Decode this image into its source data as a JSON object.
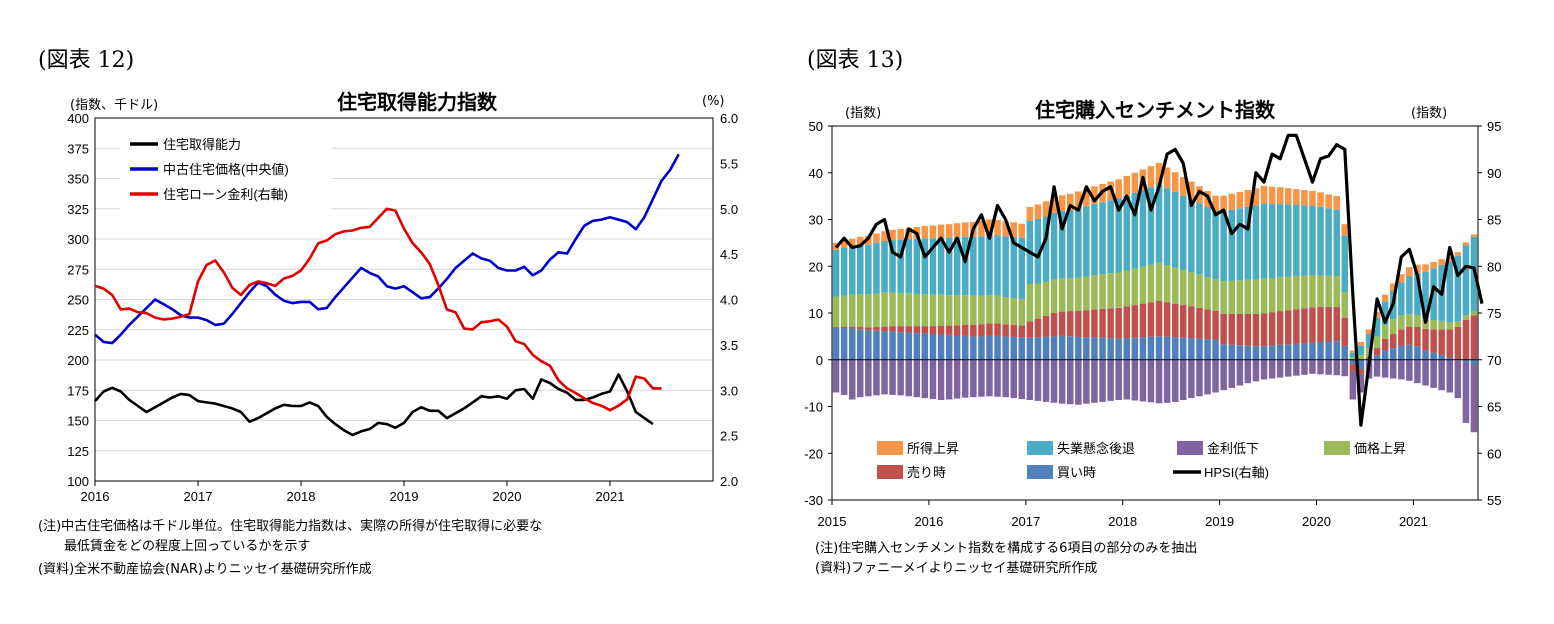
{
  "left": {
    "figure_label": "(図表 12)",
    "notes": [
      "(注)中古住宅価格は千ドル単位。住宅取得能力指数は、実際の所得が住宅取得に必要な",
      "　　最低賃金をどの程度上回っているかを示す",
      "(資料)全米不動産協会(NAR)よりニッセイ基礎研究所作成"
    ]
  },
  "right": {
    "figure_label": "(図表 13)",
    "notes": [
      "(注)住宅購入センチメント指数を構成する6項目の部分のみを抽出",
      "(資料)ファニーメイよりニッセイ基礎研究所作成"
    ]
  },
  "chart_data": [
    {
      "type": "line",
      "title": "住宅取得能力指数",
      "ylabel_left": "(指数、千ドル)",
      "ylabel_right": "(%)",
      "x_start": 2016,
      "x_step_per_month": true,
      "x_ticks": [
        "2016",
        "2017",
        "2018",
        "2019",
        "2020",
        "2021"
      ],
      "ylim_left": [
        100,
        400
      ],
      "yticks_left": [
        "100",
        "125",
        "150",
        "175",
        "200",
        "225",
        "250",
        "275",
        "300",
        "325",
        "350",
        "375",
        "400"
      ],
      "ylim_right": [
        2.0,
        6.0
      ],
      "yticks_right": [
        "2.0",
        "2.5",
        "3.0",
        "3.5",
        "4.0",
        "4.5",
        "5.0",
        "5.5",
        "6.0"
      ],
      "legend": {
        "position": "top-left",
        "entries": [
          "住宅取得能力",
          "中古住宅価格(中央値)",
          "住宅ローン金利(右軸)"
        ]
      },
      "series": [
        {
          "name": "住宅取得能力",
          "axis": "left",
          "color": "#000000",
          "values": [
            166,
            174,
            177,
            174,
            167,
            162,
            157,
            161,
            165,
            169,
            172,
            171,
            166,
            165,
            164,
            162,
            160,
            157,
            149,
            152,
            156,
            160,
            163,
            162,
            162,
            165,
            162,
            153,
            147,
            142,
            138,
            141,
            143,
            148,
            147,
            144,
            148,
            157,
            161,
            158,
            158,
            152,
            156,
            160,
            165,
            170,
            169,
            170,
            168,
            175,
            176,
            168,
            184,
            181,
            176,
            173,
            167,
            167,
            169,
            172,
            174,
            188,
            174,
            157,
            152,
            147
          ]
        },
        {
          "name": "中古住宅価格(中央値)",
          "axis": "left",
          "color": "#0000CC",
          "values": [
            221,
            215,
            214,
            221,
            229,
            236,
            243,
            250,
            246,
            242,
            237,
            235,
            235,
            233,
            229,
            230,
            238,
            247,
            256,
            264,
            261,
            254,
            249,
            247,
            248,
            248,
            242,
            243,
            252,
            260,
            268,
            276,
            272,
            269,
            261,
            259,
            261,
            256,
            251,
            252,
            259,
            267,
            276,
            282,
            288,
            284,
            282,
            276,
            274,
            274,
            277,
            270,
            274,
            283,
            289,
            288,
            300,
            311,
            315,
            316,
            318,
            316,
            314,
            308,
            318,
            333,
            348,
            357,
            370
          ]
        },
        {
          "name": "住宅ローン金利(右軸)",
          "axis": "right",
          "color": "#E00000",
          "values": [
            4.15,
            4.12,
            4.05,
            3.89,
            3.9,
            3.86,
            3.85,
            3.8,
            3.78,
            3.79,
            3.81,
            3.84,
            4.2,
            4.38,
            4.43,
            4.3,
            4.13,
            4.05,
            4.16,
            4.2,
            4.18,
            4.15,
            4.23,
            4.26,
            4.32,
            4.45,
            4.62,
            4.65,
            4.72,
            4.75,
            4.76,
            4.79,
            4.8,
            4.9,
            5.0,
            4.98,
            4.78,
            4.62,
            4.52,
            4.39,
            4.16,
            3.89,
            3.86,
            3.68,
            3.67,
            3.75,
            3.76,
            3.78,
            3.7,
            3.54,
            3.51,
            3.39,
            3.32,
            3.27,
            3.11,
            3.02,
            2.97,
            2.91,
            2.86,
            2.83,
            2.78,
            2.83,
            2.9,
            3.15,
            3.13,
            3.02,
            3.02
          ]
        }
      ]
    },
    {
      "type": "bar+line",
      "title": "住宅購入センチメント指数",
      "ylabel_left": "(指数)",
      "ylabel_right": "(指数)",
      "x_start": 2015,
      "x_ticks": [
        "2015",
        "2016",
        "2017",
        "2018",
        "2019",
        "2020",
        "2021"
      ],
      "ylim_left": [
        -30,
        50
      ],
      "yticks_left": [
        "-30",
        "-20",
        "-10",
        "0",
        "10",
        "20",
        "30",
        "40",
        "50"
      ],
      "ylim_right": [
        55,
        95
      ],
      "yticks_right": [
        "55",
        "60",
        "65",
        "70",
        "75",
        "80",
        "85",
        "90",
        "95"
      ],
      "legend": {
        "position": "bottom",
        "entries": [
          "所得上昇",
          "失業懸念後退",
          "金利低下",
          "価格上昇",
          "売り時",
          "買い時",
          "HPSI(右軸)"
        ]
      },
      "series": [
        {
          "name": "買い時",
          "kind": "bar",
          "color": "#4F81BD",
          "values": [
            6.8,
            6.8,
            6.7,
            6.5,
            6.3,
            6.2,
            6.1,
            6.0,
            5.9,
            5.8,
            5.7,
            5.6,
            5.5,
            5.4,
            5.3,
            5.2,
            5.1,
            5.0,
            5.0,
            5.1,
            5.1,
            5.0,
            4.9,
            4.8,
            4.7,
            4.8,
            4.9,
            5.0,
            5.1,
            5.0,
            4.9,
            4.8,
            4.8,
            4.7,
            4.6,
            4.5,
            4.6,
            4.7,
            4.8,
            4.9,
            5.0,
            4.9,
            4.8,
            4.7,
            4.6,
            4.5,
            4.4,
            4.3,
            3.3,
            3.2,
            3.1,
            3.0,
            2.9,
            2.9,
            3.0,
            3.2,
            3.3,
            3.4,
            3.5,
            3.6,
            3.8,
            3.9,
            4.0,
            3.0,
            -1.0,
            -2.0,
            -0.5,
            1.0,
            2.0,
            2.5,
            3.0,
            3.2,
            2.8,
            2.0,
            1.5,
            1.0,
            0.5,
            -0.2,
            -0.5,
            -1.0
          ]
        },
        {
          "name": "売り時",
          "kind": "bar",
          "color": "#C0504D",
          "values": [
            0.2,
            0.3,
            0.4,
            0.5,
            0.6,
            0.8,
            1.0,
            1.2,
            1.3,
            1.4,
            1.5,
            1.6,
            1.7,
            1.9,
            2.0,
            2.2,
            2.4,
            2.5,
            2.6,
            2.7,
            2.7,
            2.6,
            2.6,
            2.5,
            3.5,
            4.0,
            4.5,
            5.0,
            5.2,
            5.4,
            5.6,
            5.8,
            6.0,
            6.2,
            6.4,
            6.6,
            6.8,
            7.0,
            7.2,
            7.4,
            7.6,
            7.4,
            7.2,
            7.0,
            6.8,
            6.6,
            6.4,
            6.2,
            6.5,
            6.6,
            6.7,
            6.8,
            6.9,
            7.0,
            7.1,
            7.2,
            7.3,
            7.4,
            7.5,
            7.6,
            7.5,
            7.4,
            7.3,
            6.0,
            -1.5,
            -1.0,
            0.5,
            1.5,
            2.5,
            3.0,
            3.5,
            3.8,
            4.2,
            4.6,
            5.0,
            5.5,
            6.0,
            7.0,
            8.5,
            9.5
          ]
        },
        {
          "name": "価格上昇",
          "kind": "bar",
          "color": "#9BBB59",
          "values": [
            6.5,
            6.6,
            6.8,
            7.0,
            7.1,
            7.2,
            7.3,
            7.2,
            7.1,
            7.0,
            6.9,
            6.8,
            6.7,
            6.6,
            6.5,
            6.4,
            6.3,
            6.2,
            6.1,
            6.0,
            5.9,
            5.8,
            5.7,
            5.6,
            8.0,
            7.5,
            7.3,
            7.2,
            7.1,
            7.0,
            7.1,
            7.2,
            7.3,
            7.4,
            7.5,
            7.6,
            7.7,
            7.8,
            7.9,
            8.0,
            8.1,
            7.9,
            7.7,
            7.5,
            7.3,
            7.1,
            6.9,
            6.7,
            7.0,
            7.1,
            7.2,
            7.3,
            7.4,
            7.5,
            7.4,
            7.3,
            7.2,
            7.1,
            7.0,
            6.9,
            6.8,
            6.7,
            6.6,
            5.5,
            0.5,
            1.0,
            2.0,
            2.5,
            3.0,
            3.2,
            3.0,
            2.8,
            2.5,
            2.2,
            2.0,
            1.8,
            1.5,
            1.2,
            1.0,
            0.8
          ]
        },
        {
          "name": "失業懸念後退",
          "kind": "bar",
          "color": "#4BACC6",
          "values": [
            10.0,
            10.2,
            10.3,
            10.5,
            10.6,
            10.8,
            11.0,
            11.2,
            11.4,
            11.6,
            11.8,
            12.0,
            12.1,
            12.2,
            12.3,
            12.4,
            12.5,
            12.6,
            12.7,
            12.8,
            12.9,
            13.0,
            13.1,
            13.2,
            13.5,
            13.8,
            14.0,
            14.2,
            14.4,
            14.6,
            14.8,
            15.0,
            15.2,
            15.4,
            15.6,
            15.8,
            16.0,
            16.2,
            16.4,
            16.6,
            16.8,
            16.5,
            16.2,
            15.9,
            15.6,
            15.3,
            15.0,
            14.7,
            15.0,
            15.2,
            15.4,
            15.6,
            15.8,
            16.0,
            15.8,
            15.6,
            15.4,
            15.2,
            15.0,
            14.8,
            14.6,
            14.4,
            14.2,
            12.0,
            1.0,
            2.0,
            3.0,
            4.0,
            5.0,
            6.0,
            7.0,
            8.0,
            9.0,
            10.0,
            11.0,
            12.0,
            13.0,
            14.0,
            15.0,
            16.0
          ]
        },
        {
          "name": "所得上昇",
          "kind": "bar",
          "color": "#F79646",
          "values": [
            1.5,
            1.6,
            1.7,
            1.8,
            1.9,
            2.0,
            2.1,
            2.2,
            2.3,
            2.4,
            2.5,
            2.6,
            2.7,
            2.8,
            2.9,
            3.0,
            3.1,
            3.2,
            3.3,
            3.4,
            3.3,
            3.2,
            3.1,
            3.0,
            3.0,
            3.1,
            3.2,
            3.3,
            3.4,
            3.5,
            3.6,
            3.7,
            3.8,
            3.9,
            4.0,
            4.1,
            4.2,
            4.3,
            4.4,
            4.5,
            4.6,
            4.4,
            4.2,
            4.0,
            3.8,
            3.6,
            3.4,
            3.2,
            3.3,
            3.4,
            3.5,
            3.6,
            3.7,
            3.8,
            3.7,
            3.6,
            3.5,
            3.4,
            3.3,
            3.2,
            3.1,
            3.0,
            2.9,
            2.5,
            0.5,
            0.8,
            1.0,
            1.2,
            1.4,
            1.6,
            1.8,
            2.0,
            1.8,
            1.6,
            1.4,
            1.2,
            1.0,
            0.8,
            0.6,
            0.5
          ]
        },
        {
          "name": "金利低下",
          "kind": "bar",
          "color": "#8064A2",
          "values": [
            -7.0,
            -7.5,
            -8.5,
            -8.0,
            -7.8,
            -7.6,
            -7.4,
            -7.5,
            -7.6,
            -7.8,
            -8.0,
            -8.2,
            -8.4,
            -8.6,
            -8.5,
            -8.3,
            -8.1,
            -8.0,
            -7.9,
            -7.8,
            -7.9,
            -8.0,
            -8.2,
            -8.4,
            -8.6,
            -8.8,
            -9.0,
            -9.2,
            -9.4,
            -9.5,
            -9.6,
            -9.4,
            -9.2,
            -9.0,
            -8.8,
            -8.6,
            -8.5,
            -8.7,
            -8.9,
            -9.1,
            -9.3,
            -9.2,
            -9.0,
            -8.6,
            -8.2,
            -7.8,
            -7.4,
            -7.0,
            -6.5,
            -6.0,
            -5.5,
            -5.0,
            -4.6,
            -4.2,
            -4.0,
            -3.8,
            -3.6,
            -3.4,
            -3.2,
            -3.0,
            -3.1,
            -3.2,
            -3.3,
            -3.5,
            -6.0,
            -4.0,
            -3.5,
            -3.6,
            -3.8,
            -4.0,
            -4.2,
            -4.5,
            -5.0,
            -5.5,
            -6.0,
            -6.5,
            -7.0,
            -8.0,
            -13.0,
            -14.5
          ]
        },
        {
          "name": "HPSI(右軸)",
          "kind": "line",
          "axis": "right",
          "color": "#000000",
          "values": [
            82.0,
            83.0,
            82.0,
            82.2,
            83.0,
            84.5,
            85.0,
            81.5,
            81.0,
            84.0,
            83.5,
            81.0,
            82.0,
            83.0,
            81.5,
            83.0,
            80.5,
            84.0,
            85.5,
            83.0,
            86.5,
            85.0,
            82.5,
            82.0,
            81.5,
            81.0,
            83.0,
            88.5,
            84.0,
            86.5,
            86.0,
            88.5,
            87.0,
            88.0,
            88.5,
            86.0,
            87.5,
            85.5,
            89.5,
            86.0,
            88.5,
            92.0,
            92.5,
            91.0,
            86.5,
            88.0,
            87.5,
            85.5,
            86.0,
            83.5,
            84.5,
            84.0,
            90.0,
            89.0,
            92.0,
            91.5,
            94.0,
            94.0,
            91.5,
            89.0,
            91.5,
            91.8,
            93.0,
            92.5,
            77.0,
            63.0,
            69.5,
            76.5,
            74.0,
            76.0,
            81.0,
            81.8,
            79.0,
            74.0,
            77.8,
            77.0,
            82.0,
            79.0,
            80.0,
            79.8,
            76.0
          ]
        }
      ]
    }
  ]
}
